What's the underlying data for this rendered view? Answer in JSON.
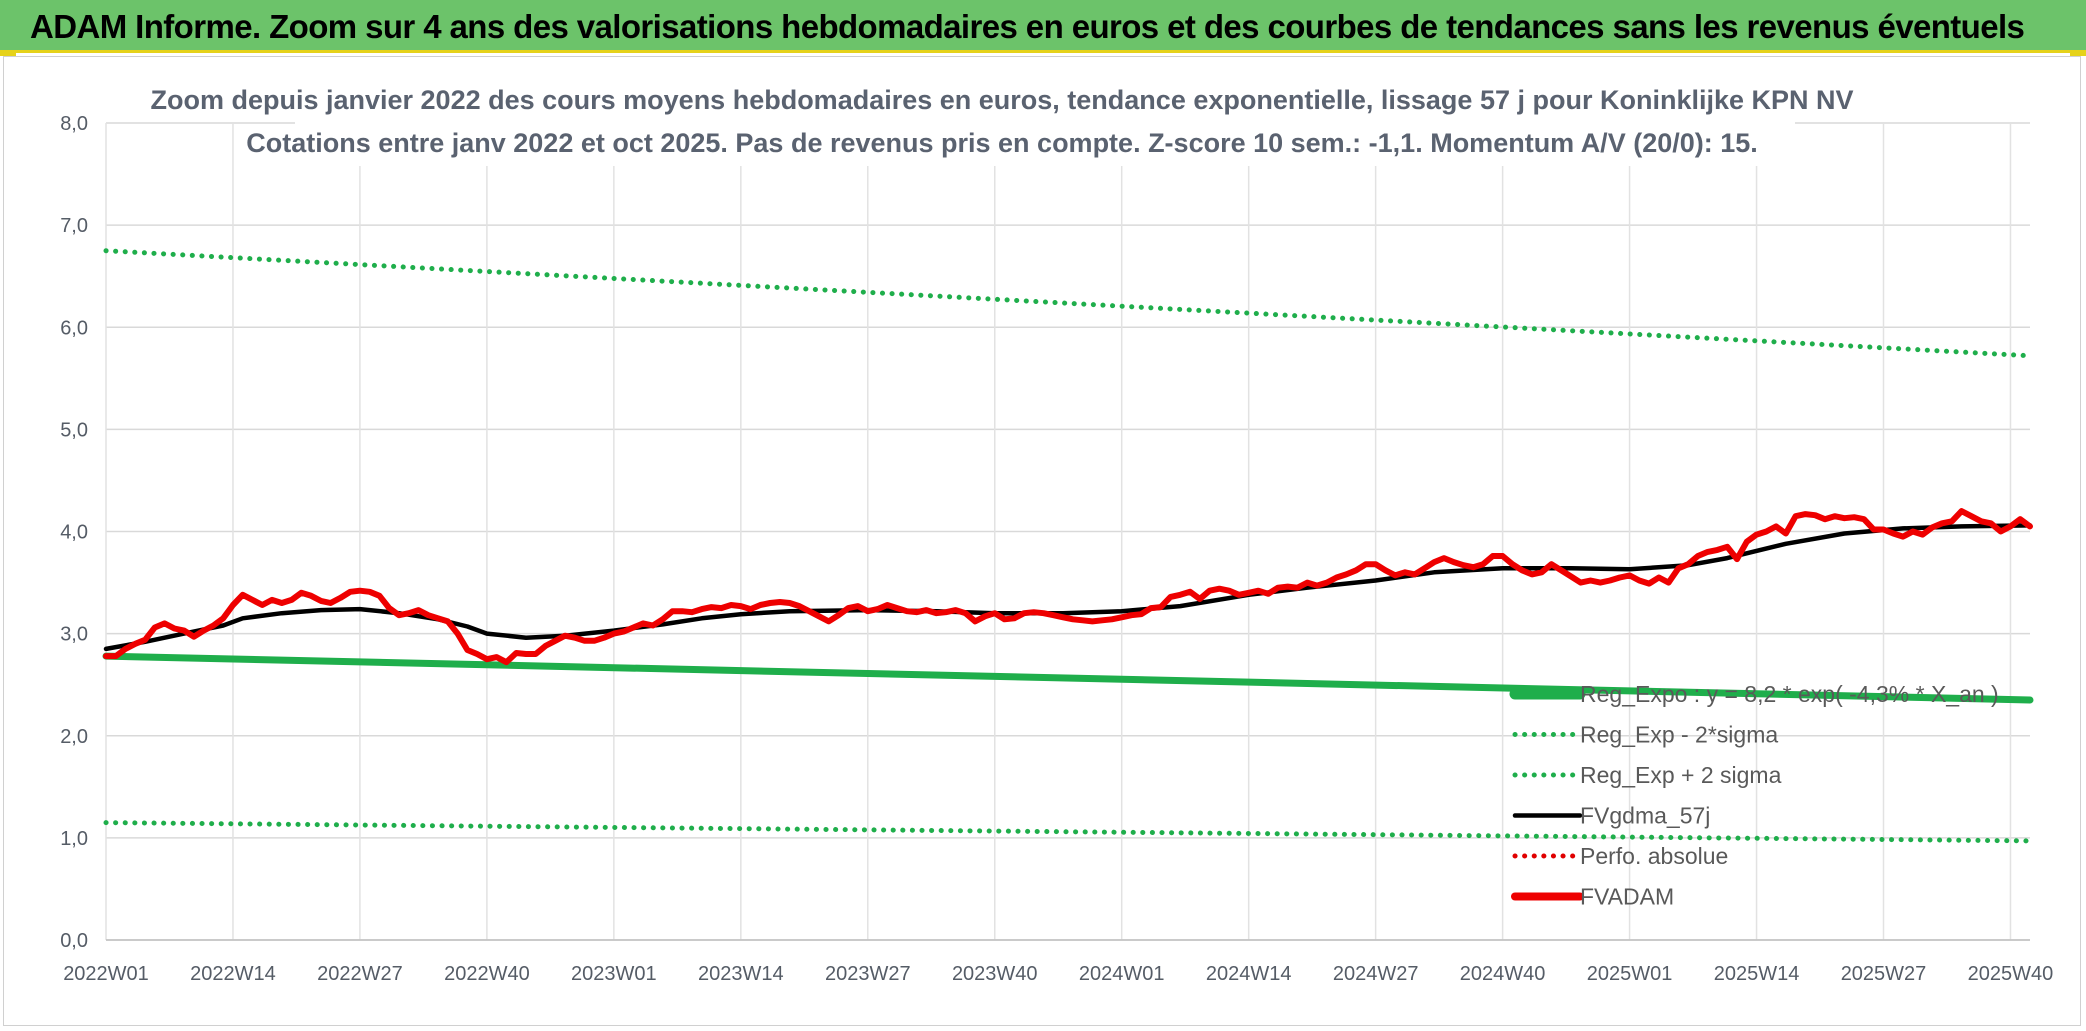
{
  "banner": {
    "title": "ADAM Informe. Zoom sur 4 ans des valorisations hebdomadaires en euros et des courbes de tendances sans les revenus éventuels"
  },
  "colors": {
    "banner_bg": "#6cc36a",
    "banner_border": "#e6d21a",
    "reg_expo": "#1fae4b",
    "sigma_bands": "#1fae4b",
    "fvgdma": "#000000",
    "perfo": "#e00000",
    "fvadam": "#ee0000"
  },
  "chart_data": {
    "type": "line",
    "title_line1": "Zoom depuis janvier 2022 des cours moyens hebdomadaires en euros, tendance exponentielle, lissage 57 j pour Koninklijke KPN NV",
    "title_line2": "Cotations entre janv 2022 et oct 2025. Pas de revenus pris en compte. Z-score 10 sem.: -1,1. Momentum A/V (20/0): 15.",
    "ylim": [
      0,
      8
    ],
    "y_ticks": [
      "0,0",
      "1,0",
      "2,0",
      "3,0",
      "4,0",
      "5,0",
      "6,0",
      "7,0",
      "8,0"
    ],
    "x_range_weeks": [
      0,
      197
    ],
    "x_ticks": [
      {
        "week": 0,
        "label": "2022W01"
      },
      {
        "week": 13,
        "label": "2022W14"
      },
      {
        "week": 26,
        "label": "2022W27"
      },
      {
        "week": 39,
        "label": "2022W40"
      },
      {
        "week": 52,
        "label": "2023W01"
      },
      {
        "week": 65,
        "label": "2023W14"
      },
      {
        "week": 78,
        "label": "2023W27"
      },
      {
        "week": 91,
        "label": "2023W40"
      },
      {
        "week": 104,
        "label": "2024W01"
      },
      {
        "week": 117,
        "label": "2024W14"
      },
      {
        "week": 130,
        "label": "2024W27"
      },
      {
        "week": 143,
        "label": "2024W40"
      },
      {
        "week": 156,
        "label": "2025W01"
      },
      {
        "week": 169,
        "label": "2025W14"
      },
      {
        "week": 182,
        "label": "2025W27"
      },
      {
        "week": 195,
        "label": "2025W40"
      }
    ],
    "legend_position": "bottom-right",
    "grid": true,
    "series": [
      {
        "name": "Reg_Expo : y = 8,2 * exp( -4,3% * X_an )",
        "style": "solid-thick",
        "color": "#1fae4b",
        "points": [
          [
            0,
            2.78
          ],
          [
            197,
            2.35
          ]
        ]
      },
      {
        "name": "Reg_Exp - 2*sigma",
        "style": "dotted",
        "color": "#1fae4b",
        "points": [
          [
            0,
            1.15
          ],
          [
            197,
            0.97
          ]
        ]
      },
      {
        "name": "Reg_Exp + 2 sigma",
        "style": "dotted",
        "color": "#1fae4b",
        "points": [
          [
            0,
            6.75
          ],
          [
            197,
            5.72
          ]
        ]
      },
      {
        "name": "FVgdma_57j",
        "style": "solid",
        "color": "#000000",
        "points": [
          [
            0,
            2.85
          ],
          [
            4,
            2.92
          ],
          [
            8,
            3.0
          ],
          [
            12,
            3.08
          ],
          [
            14,
            3.15
          ],
          [
            18,
            3.2
          ],
          [
            22,
            3.23
          ],
          [
            26,
            3.24
          ],
          [
            30,
            3.2
          ],
          [
            34,
            3.14
          ],
          [
            37,
            3.07
          ],
          [
            39,
            3.0
          ],
          [
            43,
            2.96
          ],
          [
            47,
            2.98
          ],
          [
            52,
            3.03
          ],
          [
            57,
            3.09
          ],
          [
            61,
            3.15
          ],
          [
            65,
            3.19
          ],
          [
            70,
            3.22
          ],
          [
            78,
            3.23
          ],
          [
            85,
            3.22
          ],
          [
            91,
            3.2
          ],
          [
            98,
            3.2
          ],
          [
            104,
            3.22
          ],
          [
            110,
            3.27
          ],
          [
            117,
            3.38
          ],
          [
            123,
            3.45
          ],
          [
            130,
            3.52
          ],
          [
            136,
            3.6
          ],
          [
            143,
            3.64
          ],
          [
            150,
            3.64
          ],
          [
            156,
            3.63
          ],
          [
            162,
            3.67
          ],
          [
            166,
            3.74
          ],
          [
            172,
            3.88
          ],
          [
            178,
            3.98
          ],
          [
            184,
            4.03
          ],
          [
            190,
            4.05
          ],
          [
            197,
            4.06
          ]
        ]
      },
      {
        "name": "Perfo. absolue",
        "style": "dotted",
        "color": "#e00000",
        "points": []
      },
      {
        "name": "FVADAM",
        "style": "solid-thick",
        "color": "#ee0000",
        "points": [
          [
            0,
            2.78
          ],
          [
            1,
            2.78
          ],
          [
            2,
            2.85
          ],
          [
            3,
            2.9
          ],
          [
            4,
            2.94
          ],
          [
            5,
            3.06
          ],
          [
            6,
            3.1
          ],
          [
            7,
            3.05
          ],
          [
            8,
            3.03
          ],
          [
            9,
            2.97
          ],
          [
            10,
            3.03
          ],
          [
            11,
            3.08
          ],
          [
            12,
            3.15
          ],
          [
            13,
            3.28
          ],
          [
            14,
            3.38
          ],
          [
            15,
            3.33
          ],
          [
            16,
            3.28
          ],
          [
            17,
            3.33
          ],
          [
            18,
            3.3
          ],
          [
            19,
            3.33
          ],
          [
            20,
            3.4
          ],
          [
            21,
            3.37
          ],
          [
            22,
            3.32
          ],
          [
            23,
            3.3
          ],
          [
            24,
            3.35
          ],
          [
            25,
            3.41
          ],
          [
            26,
            3.42
          ],
          [
            27,
            3.41
          ],
          [
            28,
            3.37
          ],
          [
            29,
            3.25
          ],
          [
            30,
            3.18
          ],
          [
            31,
            3.2
          ],
          [
            32,
            3.23
          ],
          [
            33,
            3.18
          ],
          [
            34,
            3.15
          ],
          [
            35,
            3.12
          ],
          [
            36,
            3.0
          ],
          [
            37,
            2.84
          ],
          [
            38,
            2.8
          ],
          [
            39,
            2.75
          ],
          [
            40,
            2.77
          ],
          [
            41,
            2.72
          ],
          [
            42,
            2.81
          ],
          [
            43,
            2.8
          ],
          [
            44,
            2.8
          ],
          [
            45,
            2.88
          ],
          [
            46,
            2.93
          ],
          [
            47,
            2.98
          ],
          [
            48,
            2.96
          ],
          [
            49,
            2.93
          ],
          [
            50,
            2.93
          ],
          [
            51,
            2.96
          ],
          [
            52,
            3.0
          ],
          [
            53,
            3.02
          ],
          [
            54,
            3.06
          ],
          [
            55,
            3.1
          ],
          [
            56,
            3.08
          ],
          [
            57,
            3.14
          ],
          [
            58,
            3.22
          ],
          [
            59,
            3.22
          ],
          [
            60,
            3.21
          ],
          [
            61,
            3.24
          ],
          [
            62,
            3.26
          ],
          [
            63,
            3.25
          ],
          [
            64,
            3.28
          ],
          [
            65,
            3.27
          ],
          [
            66,
            3.24
          ],
          [
            67,
            3.28
          ],
          [
            68,
            3.3
          ],
          [
            69,
            3.31
          ],
          [
            70,
            3.3
          ],
          [
            71,
            3.27
          ],
          [
            72,
            3.22
          ],
          [
            73,
            3.17
          ],
          [
            74,
            3.12
          ],
          [
            75,
            3.18
          ],
          [
            76,
            3.25
          ],
          [
            77,
            3.27
          ],
          [
            78,
            3.22
          ],
          [
            79,
            3.24
          ],
          [
            80,
            3.28
          ],
          [
            81,
            3.25
          ],
          [
            82,
            3.22
          ],
          [
            83,
            3.21
          ],
          [
            84,
            3.23
          ],
          [
            85,
            3.2
          ],
          [
            86,
            3.21
          ],
          [
            87,
            3.23
          ],
          [
            88,
            3.2
          ],
          [
            89,
            3.12
          ],
          [
            90,
            3.17
          ],
          [
            91,
            3.2
          ],
          [
            92,
            3.14
          ],
          [
            93,
            3.15
          ],
          [
            94,
            3.2
          ],
          [
            95,
            3.21
          ],
          [
            96,
            3.2
          ],
          [
            97,
            3.18
          ],
          [
            98,
            3.16
          ],
          [
            99,
            3.14
          ],
          [
            100,
            3.13
          ],
          [
            101,
            3.12
          ],
          [
            102,
            3.13
          ],
          [
            103,
            3.14
          ],
          [
            104,
            3.16
          ],
          [
            105,
            3.18
          ],
          [
            106,
            3.19
          ],
          [
            107,
            3.25
          ],
          [
            108,
            3.26
          ],
          [
            109,
            3.36
          ],
          [
            110,
            3.38
          ],
          [
            111,
            3.41
          ],
          [
            112,
            3.34
          ],
          [
            113,
            3.42
          ],
          [
            114,
            3.44
          ],
          [
            115,
            3.42
          ],
          [
            116,
            3.38
          ],
          [
            117,
            3.4
          ],
          [
            118,
            3.42
          ],
          [
            119,
            3.39
          ],
          [
            120,
            3.45
          ],
          [
            121,
            3.46
          ],
          [
            122,
            3.45
          ],
          [
            123,
            3.5
          ],
          [
            124,
            3.47
          ],
          [
            125,
            3.5
          ],
          [
            126,
            3.55
          ],
          [
            127,
            3.58
          ],
          [
            128,
            3.62
          ],
          [
            129,
            3.68
          ],
          [
            130,
            3.68
          ],
          [
            131,
            3.62
          ],
          [
            132,
            3.57
          ],
          [
            133,
            3.6
          ],
          [
            134,
            3.58
          ],
          [
            135,
            3.64
          ],
          [
            136,
            3.7
          ],
          [
            137,
            3.74
          ],
          [
            138,
            3.7
          ],
          [
            139,
            3.67
          ],
          [
            140,
            3.65
          ],
          [
            141,
            3.68
          ],
          [
            142,
            3.76
          ],
          [
            143,
            3.76
          ],
          [
            144,
            3.68
          ],
          [
            145,
            3.62
          ],
          [
            146,
            3.58
          ],
          [
            147,
            3.6
          ],
          [
            148,
            3.68
          ],
          [
            149,
            3.62
          ],
          [
            150,
            3.56
          ],
          [
            151,
            3.5
          ],
          [
            152,
            3.52
          ],
          [
            153,
            3.5
          ],
          [
            154,
            3.52
          ],
          [
            155,
            3.55
          ],
          [
            156,
            3.57
          ],
          [
            157,
            3.52
          ],
          [
            158,
            3.49
          ],
          [
            159,
            3.55
          ],
          [
            160,
            3.5
          ],
          [
            161,
            3.64
          ],
          [
            162,
            3.68
          ],
          [
            163,
            3.76
          ],
          [
            164,
            3.8
          ],
          [
            165,
            3.82
          ],
          [
            166,
            3.85
          ],
          [
            167,
            3.73
          ],
          [
            168,
            3.9
          ],
          [
            169,
            3.97
          ],
          [
            170,
            4.0
          ],
          [
            171,
            4.05
          ],
          [
            172,
            3.98
          ],
          [
            173,
            4.15
          ],
          [
            174,
            4.17
          ],
          [
            175,
            4.16
          ],
          [
            176,
            4.12
          ],
          [
            177,
            4.15
          ],
          [
            178,
            4.13
          ],
          [
            179,
            4.14
          ],
          [
            180,
            4.12
          ],
          [
            181,
            4.02
          ],
          [
            182,
            4.02
          ],
          [
            183,
            3.98
          ],
          [
            184,
            3.95
          ],
          [
            185,
            4.0
          ],
          [
            186,
            3.97
          ],
          [
            187,
            4.04
          ],
          [
            188,
            4.08
          ],
          [
            189,
            4.1
          ],
          [
            190,
            4.2
          ],
          [
            191,
            4.15
          ],
          [
            192,
            4.1
          ],
          [
            193,
            4.08
          ],
          [
            194,
            4.0
          ],
          [
            195,
            4.05
          ],
          [
            196,
            4.12
          ],
          [
            197,
            4.05
          ]
        ]
      }
    ]
  }
}
